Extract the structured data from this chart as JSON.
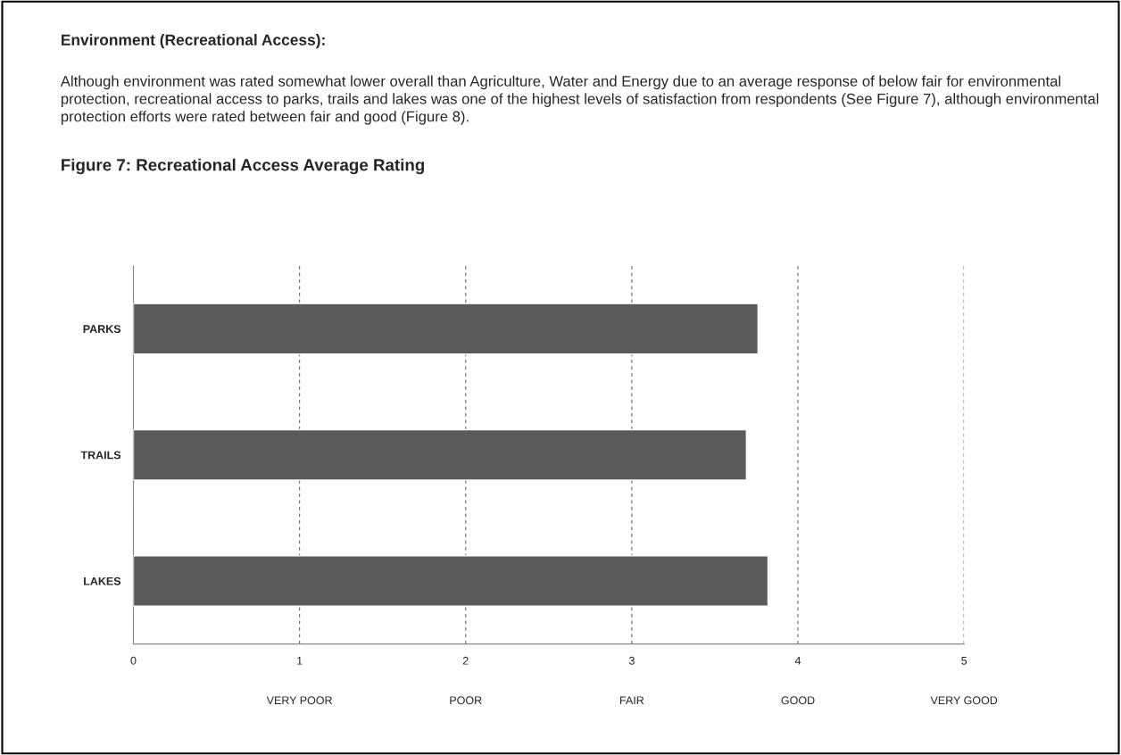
{
  "chart_data": {
    "type": "bar",
    "orientation": "horizontal",
    "title": "Environment (Recreational Access):",
    "subtitle": "Figure 7: Recreational Access Average Rating",
    "annotations": [
      "Although environment was rated somewhat lower overall than Agriculture, Water and Energy due to an average response of below fair for environmental protection, recreational access to parks, trails and lakes was one of the highest levels of satisfaction from respondents (See Figure 7), although environmental protection efforts were rated between fair and good (Figure 8).",
      "VERY POOR",
      "POOR",
      "FAIR",
      "GOOD",
      "VERY GOOD"
    ],
    "categories": [
      "PARKS",
      "TRAILS",
      "LAKES"
    ],
    "values": [
      3.76,
      3.69,
      3.82
    ],
    "color": "#5a5a5a",
    "xlim": [
      0,
      5
    ],
    "xticks": [
      0,
      1,
      2,
      3,
      4,
      5
    ],
    "grid": "x"
  }
}
